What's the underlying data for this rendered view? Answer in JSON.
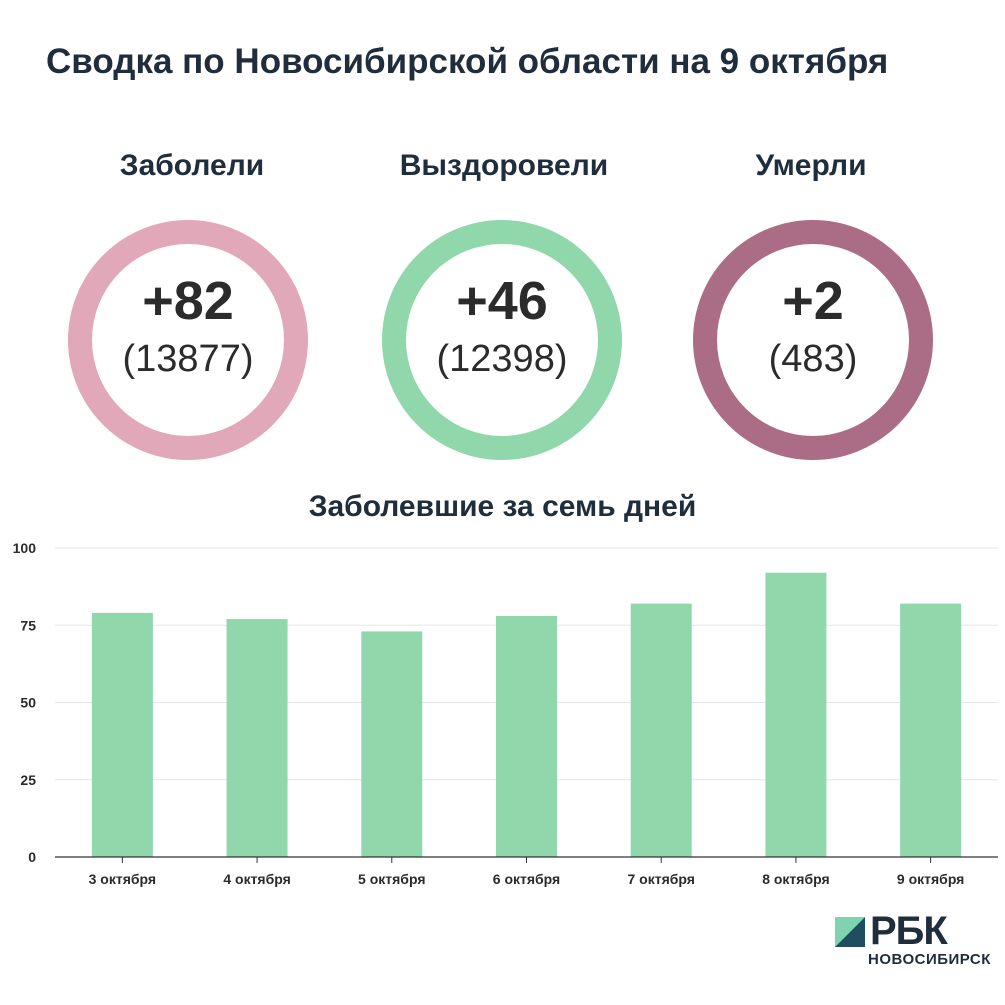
{
  "title": "Сводка по Новосибирской области на 9 октября",
  "stats": [
    {
      "label": "Заболели",
      "delta": "+82",
      "total": "(13877)",
      "color": "#e0a8b8"
    },
    {
      "label": "Выздоровели",
      "delta": "+46",
      "total": "(12398)",
      "color": "#90d7ac"
    },
    {
      "label": "Умерли",
      "delta": "+2",
      "total": "(483)",
      "color": "#ab6d85"
    }
  ],
  "chart_title": "Заболевшие за семь дней",
  "chart_data": {
    "type": "bar",
    "title": "Заболевшие за семь дней",
    "categories": [
      "3 октября",
      "4 октября",
      "5 октября",
      "6 октября",
      "7 октября",
      "8 октября",
      "9 октября"
    ],
    "values": [
      79,
      77,
      73,
      78,
      82,
      92,
      82
    ],
    "ylim": [
      0,
      100
    ],
    "yticks": [
      0,
      25,
      50,
      75,
      100
    ],
    "xlabel": "",
    "ylabel": "",
    "grid": true,
    "bar_color": "#90d7ac"
  },
  "logo": {
    "brand": "РБК",
    "city": "НОВОСИБИРСК",
    "accent": "#7fd3b0",
    "dark": "#1f4e5f"
  }
}
